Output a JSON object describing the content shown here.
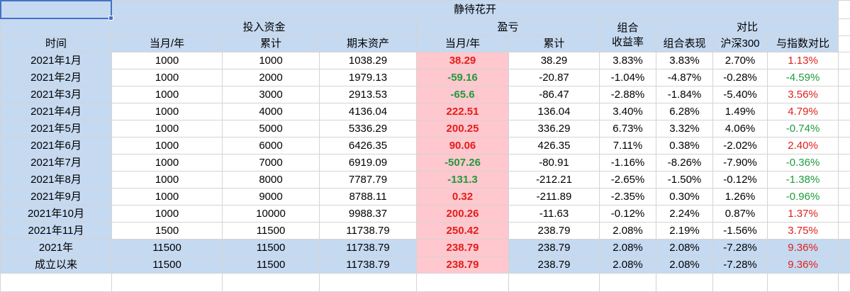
{
  "table": {
    "title": "静待花开",
    "groups": [
      "投入资金",
      "盈亏",
      "组合\n收益率",
      "对比"
    ],
    "columns": [
      "时间",
      "当月/年",
      "累计",
      "期末资产",
      "当月/年",
      "累计",
      "组合表现",
      "沪深300",
      "与指数对比"
    ],
    "rows": [
      [
        "2021年1月",
        "1000",
        "1000",
        "1038.29",
        "38.29",
        "38.29",
        "3.83%",
        "3.83%",
        "2.70%",
        "1.13%"
      ],
      [
        "2021年2月",
        "1000",
        "2000",
        "1979.13",
        "-59.16",
        "-20.87",
        "-1.04%",
        "-4.87%",
        "-0.28%",
        "-4.59%"
      ],
      [
        "2021年3月",
        "1000",
        "3000",
        "2913.53",
        "-65.6",
        "-86.47",
        "-2.88%",
        "-1.84%",
        "-5.40%",
        "3.56%"
      ],
      [
        "2021年4月",
        "1000",
        "4000",
        "4136.04",
        "222.51",
        "136.04",
        "3.40%",
        "6.28%",
        "1.49%",
        "4.79%"
      ],
      [
        "2021年5月",
        "1000",
        "5000",
        "5336.29",
        "200.25",
        "336.29",
        "6.73%",
        "3.32%",
        "4.06%",
        "-0.74%"
      ],
      [
        "2021年6月",
        "1000",
        "6000",
        "6426.35",
        "90.06",
        "426.35",
        "7.11%",
        "0.38%",
        "-2.02%",
        "2.40%"
      ],
      [
        "2021年7月",
        "1000",
        "7000",
        "6919.09",
        "-507.26",
        "-80.91",
        "-1.16%",
        "-8.26%",
        "-7.90%",
        "-0.36%"
      ],
      [
        "2021年8月",
        "1000",
        "8000",
        "7787.79",
        "-131.3",
        "-212.21",
        "-2.65%",
        "-1.50%",
        "-0.12%",
        "-1.38%"
      ],
      [
        "2021年9月",
        "1000",
        "9000",
        "8788.11",
        "0.32",
        "-211.89",
        "-2.35%",
        "0.30%",
        "1.26%",
        "-0.96%"
      ],
      [
        "2021年10月",
        "1000",
        "10000",
        "9988.37",
        "200.26",
        "-11.63",
        "-0.12%",
        "2.24%",
        "0.87%",
        "1.37%"
      ],
      [
        "2021年11月",
        "1500",
        "11500",
        "11738.79",
        "250.42",
        "238.79",
        "2.08%",
        "2.19%",
        "-1.56%",
        "3.75%"
      ],
      [
        "2021年",
        "11500",
        "11500",
        "11738.79",
        "238.79",
        "238.79",
        "2.08%",
        "2.08%",
        "-7.28%",
        "9.36%"
      ],
      [
        "成立以来",
        "11500",
        "11500",
        "11738.79",
        "238.79",
        "238.79",
        "2.08%",
        "2.08%",
        "-7.28%",
        "9.36%"
      ]
    ]
  }
}
